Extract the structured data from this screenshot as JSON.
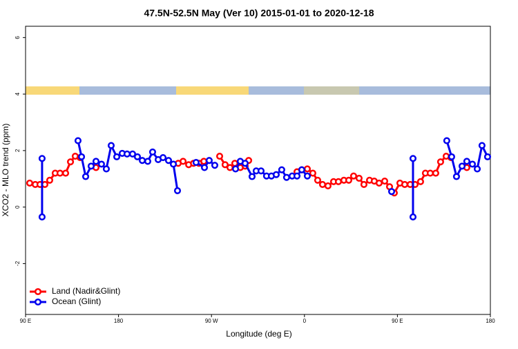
{
  "chart_data": {
    "type": "line",
    "title": "47.5N-52.5N May (Ver 10)   2015-01-01 to 2020-12-18",
    "x_label": "Longitude (deg E)",
    "y_label": "XCO2 - MLO trend (ppm)",
    "xlim": [
      90,
      540
    ],
    "ylim": [
      -3.8,
      6.4
    ],
    "xticks": [
      {
        "value": 90,
        "label": "90 E"
      },
      {
        "value": 180,
        "label": "180"
      },
      {
        "value": 270,
        "label": "90 W"
      },
      {
        "value": 360,
        "label": "0"
      },
      {
        "value": 450,
        "label": "90 E"
      },
      {
        "value": 540,
        "label": "180"
      }
    ],
    "yticks": [
      -2,
      0,
      2,
      4,
      6
    ],
    "legend": "bottomleft",
    "series": [
      {
        "name": "Land (Nadir&Glint)",
        "color": "#ff0000",
        "x": [
          94.0,
          99.4,
          104.0,
          108.7,
          113.4,
          118.7,
          123.4,
          128.8,
          133.5,
          138.1,
          142.8,
          null,
          158.2,
          null,
          237.8,
          242.5,
          247.9,
          252.6,
          257.9,
          262.6,
          null,
          277.9,
          283.2,
          287.9,
          292.6,
          297.9,
          302.6,
          306.0,
          null,
          352.8,
          357.4,
          362.8,
          368.1,
          372.8,
          377.5,
          382.8,
          388.2,
          392.9,
          398.2,
          402.9,
          407.6,
          412.9,
          417.6,
          423.0,
          427.6,
          432.3,
          437.7,
          442.4,
          447.0,
          452.4,
          457.1,
          462.4,
          467.1,
          472.4,
          477.1,
          481.8,
          487.1,
          491.8,
          497.2,
          501.9,
          null,
          517.2
        ],
        "values": [
          0.85,
          0.8,
          0.8,
          0.8,
          0.95,
          1.2,
          1.2,
          1.2,
          1.6,
          1.8,
          1.75,
          null,
          1.4,
          null,
          1.55,
          1.62,
          1.5,
          1.55,
          1.55,
          1.62,
          null,
          1.8,
          1.5,
          1.4,
          1.55,
          1.4,
          1.45,
          1.65,
          null,
          1.25,
          1.32,
          1.35,
          1.2,
          0.95,
          0.8,
          0.75,
          0.9,
          0.9,
          0.95,
          0.95,
          1.1,
          1.02,
          0.8,
          0.95,
          0.92,
          0.85,
          0.92,
          0.72,
          0.5,
          0.85,
          0.8,
          0.8,
          0.8,
          0.9,
          1.2,
          1.2,
          1.2,
          1.6,
          1.8,
          1.75,
          null,
          1.4
        ]
      },
      {
        "name": "Ocean (Glint)",
        "color": "#0000ee",
        "x": [
          106.0,
          106.0,
          null,
          140.8,
          144.2,
          148.2,
          153.5,
          158.2,
          163.5,
          168.2,
          172.9,
          178.3,
          183.6,
          188.3,
          193.6,
          198.3,
          203.0,
          208.3,
          213.0,
          218.4,
          223.1,
          228.4,
          233.1,
          237.1,
          null,
          255.1,
          263.2,
          267.8,
          273.2,
          null,
          293.3,
          297.9,
          302.6,
          309.3,
          313.3,
          318.0,
          323.3,
          328.0,
          332.7,
          338.0,
          342.7,
          348.1,
          352.8,
          357.4,
          362.8,
          null,
          444.4,
          null,
          465.1,
          465.1,
          null,
          497.8,
          502.5,
          507.2,
          512.6,
          517.2,
          522.6,
          527.3,
          531.9,
          537.3
        ],
        "values": [
          1.72,
          -0.35,
          null,
          2.35,
          1.78,
          1.08,
          1.45,
          1.62,
          1.52,
          1.35,
          2.18,
          1.78,
          1.9,
          1.88,
          1.88,
          1.78,
          1.65,
          1.62,
          1.95,
          1.68,
          1.75,
          1.65,
          1.52,
          0.58,
          null,
          1.58,
          1.4,
          1.65,
          1.48,
          null,
          1.35,
          1.62,
          1.55,
          1.08,
          1.28,
          1.28,
          1.1,
          1.1,
          1.15,
          1.32,
          1.05,
          1.1,
          1.1,
          1.32,
          1.1,
          null,
          0.55,
          null,
          1.72,
          -0.35,
          null,
          2.35,
          1.78,
          1.08,
          1.45,
          1.62,
          1.52,
          1.35,
          2.18,
          1.78
        ]
      }
    ]
  }
}
